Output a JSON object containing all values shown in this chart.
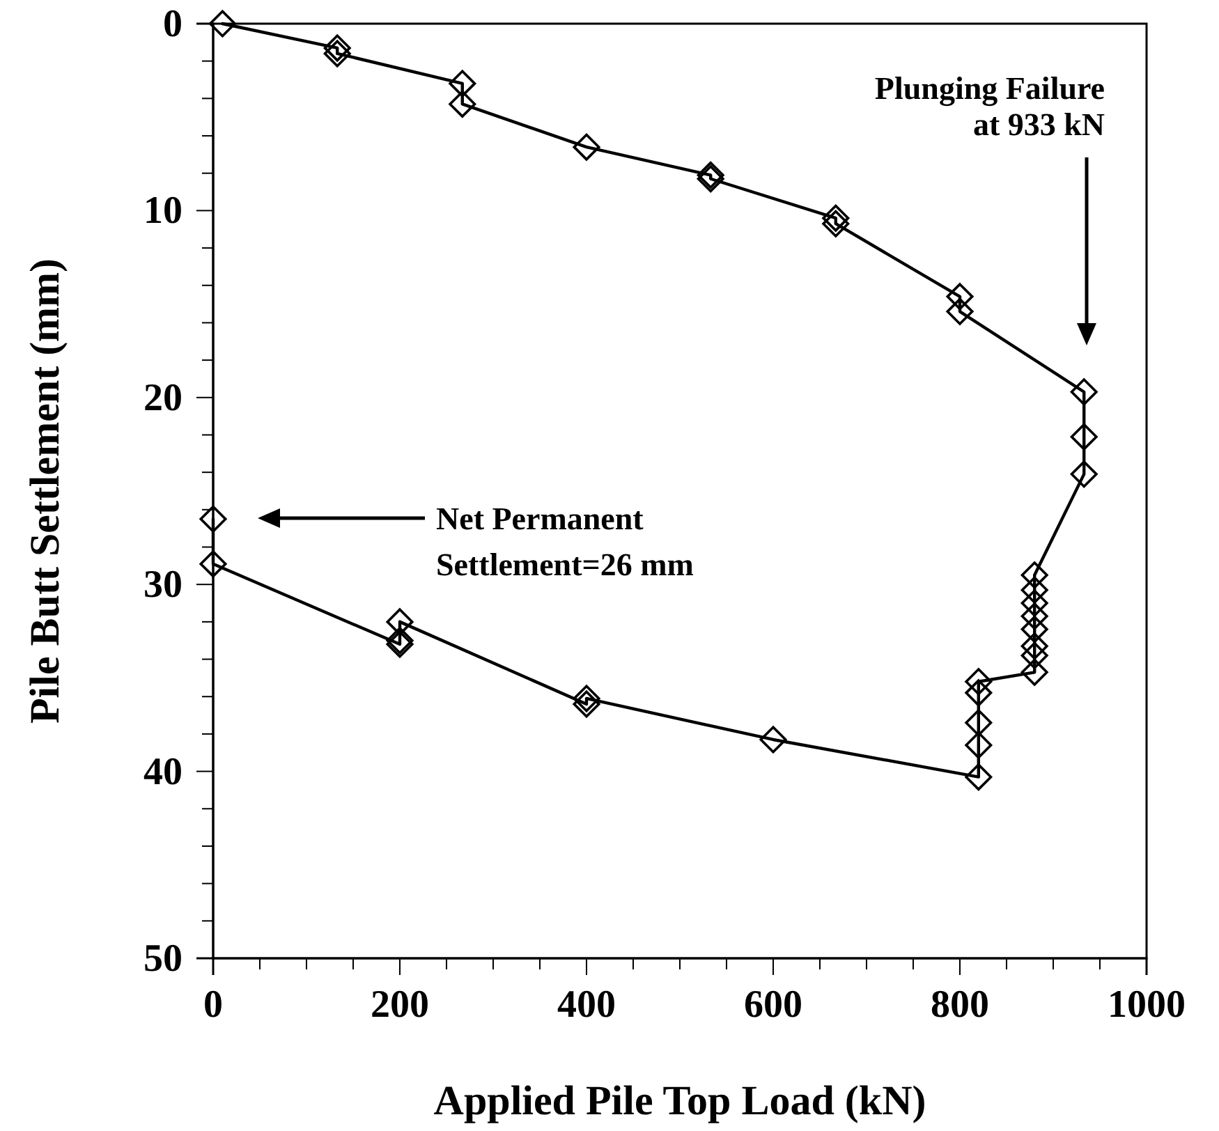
{
  "chart_data": {
    "type": "line",
    "xlabel": "Applied Pile Top Load (kN)",
    "ylabel": "Pile Butt Settlement (mm)",
    "series": [
      {
        "color": "#000000",
        "x": [
          10,
          133,
          133,
          267,
          267,
          400,
          533,
          533,
          667,
          667,
          800,
          800,
          933,
          933,
          933,
          880,
          880,
          880,
          880,
          880,
          880,
          880,
          880,
          820,
          820,
          820,
          820,
          820,
          600,
          400,
          400,
          200,
          200,
          200,
          0,
          0
        ],
        "values": [
          0,
          1.3,
          1.6,
          3.2,
          4.3,
          6.6,
          8.1,
          8.3,
          10.4,
          10.7,
          14.6,
          15.4,
          19.7,
          22.1,
          24.1,
          29.5,
          30.3,
          31.0,
          31.7,
          32.4,
          33.3,
          33.8,
          34.7,
          35.2,
          35.8,
          37.4,
          38.6,
          40.3,
          38.3,
          36.1,
          36.4,
          32.0,
          33.0,
          33.2,
          28.9,
          26.5
        ]
      }
    ],
    "marker": "diamond",
    "line_style": "solid",
    "xlim": [
      0,
      1000
    ],
    "xticks": [
      0,
      {
        "value": 50,
        "label": null
      },
      {
        "value": 100,
        "label": null
      },
      {
        "value": 150,
        "label": null
      },
      200,
      {
        "value": 250,
        "label": null
      },
      {
        "value": 300,
        "label": null
      },
      {
        "value": 350,
        "label": null
      },
      400,
      {
        "value": 450,
        "label": null
      },
      {
        "value": 500,
        "label": null
      },
      {
        "value": 550,
        "label": null
      },
      600,
      {
        "value": 650,
        "label": null
      },
      {
        "value": 700,
        "label": null
      },
      {
        "value": 750,
        "label": null
      },
      800,
      {
        "value": 850,
        "label": null
      },
      {
        "value": 900,
        "label": null
      },
      {
        "value": 950,
        "label": null
      },
      1000
    ],
    "ylim": [
      50,
      0
    ],
    "yticks": [
      0,
      {
        "value": 2,
        "label": null
      },
      {
        "value": 4,
        "label": null
      },
      {
        "value": 6,
        "label": null
      },
      {
        "value": 8,
        "label": null
      },
      10,
      {
        "value": 12,
        "label": null
      },
      {
        "value": 14,
        "label": null
      },
      {
        "value": 16,
        "label": null
      },
      {
        "value": 18,
        "label": null
      },
      20,
      {
        "value": 22,
        "label": null
      },
      {
        "value": 24,
        "label": null
      },
      {
        "value": 26,
        "label": null
      },
      {
        "value": 28,
        "label": null
      },
      30,
      {
        "value": 32,
        "label": null
      },
      {
        "value": 34,
        "label": null
      },
      {
        "value": 36,
        "label": null
      },
      {
        "value": 38,
        "label": null
      },
      40,
      {
        "value": 42,
        "label": null
      },
      {
        "value": 44,
        "label": null
      },
      {
        "value": 46,
        "label": null
      },
      {
        "value": 48,
        "label": null
      },
      50
    ],
    "grid": false,
    "annotations": [
      "Plunging Failure\nat 933 kN",
      "Net Permanent\nSettlement=26 mm"
    ]
  }
}
